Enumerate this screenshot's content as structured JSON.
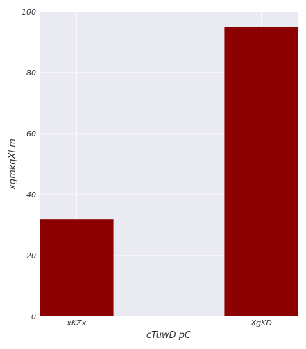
{
  "chart_data": {
    "type": "bar",
    "categories": [
      "xKZx",
      "XgKD"
    ],
    "values": [
      32,
      95
    ],
    "xlabel": "cTuwD pC",
    "ylabel": "xgmkqXl m",
    "ylim": [
      0,
      100
    ],
    "yticks": [
      0,
      20,
      40,
      60,
      80,
      100
    ],
    "grid": true,
    "legend": "none",
    "colors": {
      "bar": "#8b0000",
      "background": "#eaeaf2",
      "grid": "#ffffff"
    }
  }
}
